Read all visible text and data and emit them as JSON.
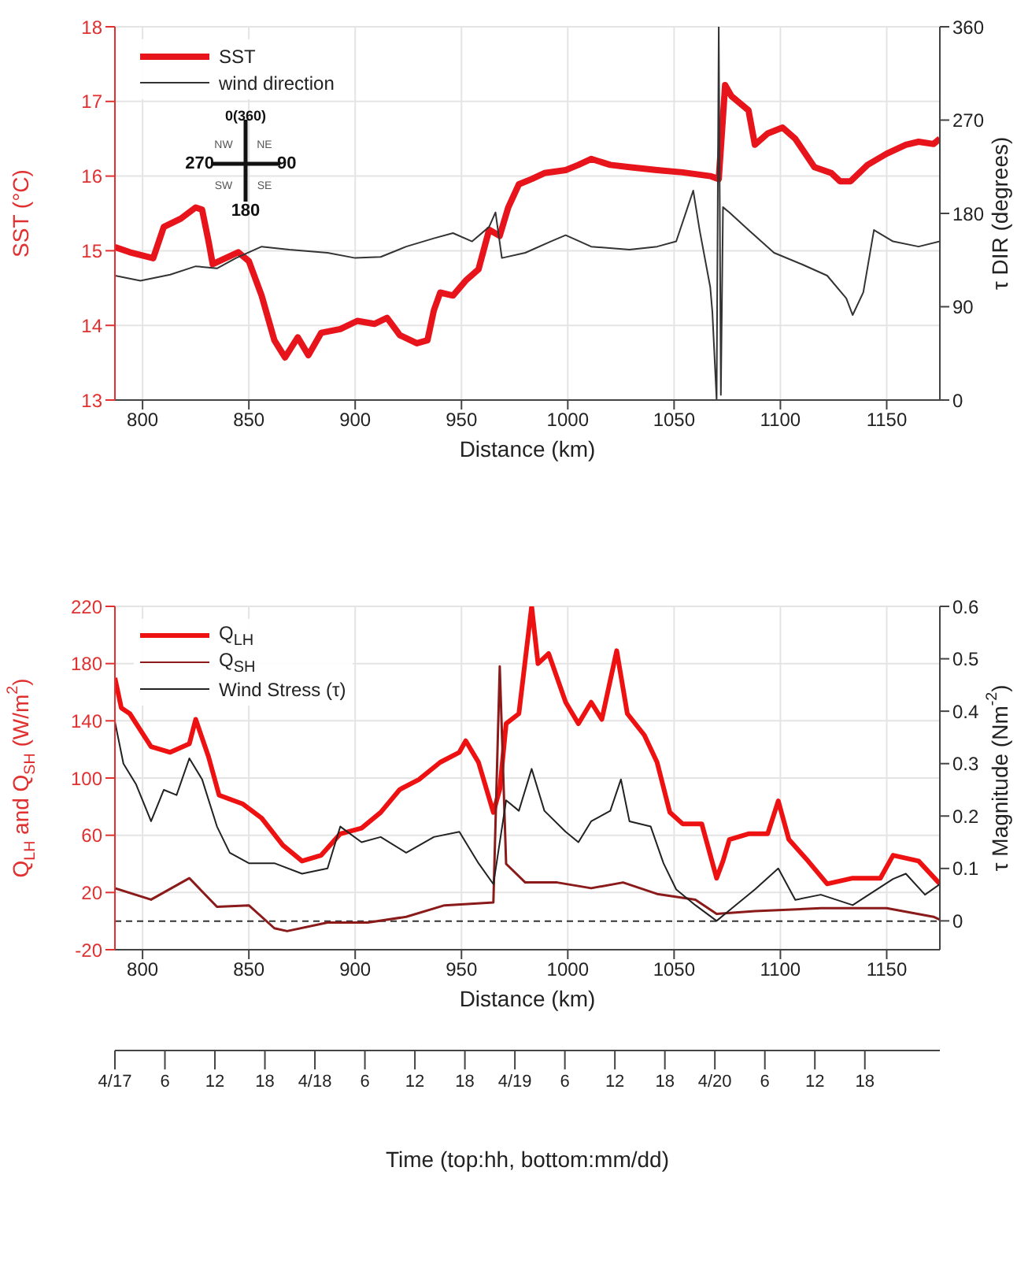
{
  "chart_data": [
    {
      "type": "line",
      "xlabel": "Distance (km)",
      "ylabel": "SST (°C)",
      "y2label": "τ DIR (degrees)",
      "xlim": [
        787,
        1175
      ],
      "xticks": [
        800,
        850,
        900,
        950,
        1000,
        1050,
        1100,
        1150
      ],
      "ylim": [
        13,
        18
      ],
      "yticks": [
        13,
        14,
        15,
        16,
        17,
        18
      ],
      "y2lim": [
        0,
        360
      ],
      "y2ticks": [
        0,
        90,
        180,
        270,
        360
      ],
      "grid": true,
      "legend": "top left",
      "annotations": [
        "0(360)",
        "90",
        "180",
        "270",
        "NE",
        "SE",
        "SW",
        "NW"
      ],
      "series": [
        {
          "name": "SST",
          "color": "#e8141b",
          "x": [
            787,
            794,
            805,
            810,
            818,
            825,
            828,
            831,
            833,
            839,
            845,
            850,
            856,
            862,
            867,
            873,
            878,
            884,
            893,
            901,
            909,
            915,
            921,
            929,
            934,
            937,
            940,
            946,
            952,
            958,
            963,
            968,
            972,
            977,
            983,
            989,
            999,
            1005,
            1011,
            1020,
            1029,
            1042,
            1054,
            1067,
            1071,
            1074,
            1077,
            1085,
            1088,
            1094,
            1101,
            1107,
            1116,
            1124,
            1128,
            1133,
            1141,
            1150,
            1159,
            1165,
            1172,
            1175
          ],
          "values": [
            15.05,
            14.98,
            14.9,
            15.32,
            15.43,
            15.58,
            15.55,
            15.13,
            14.82,
            14.9,
            14.98,
            14.86,
            14.4,
            13.8,
            13.57,
            13.84,
            13.6,
            13.9,
            13.95,
            14.06,
            14.02,
            14.1,
            13.87,
            13.76,
            13.8,
            14.2,
            14.44,
            14.4,
            14.6,
            14.75,
            15.28,
            15.2,
            15.58,
            15.89,
            15.96,
            16.04,
            16.08,
            16.15,
            16.23,
            16.15,
            16.12,
            16.08,
            16.05,
            16.0,
            15.96,
            17.22,
            17.07,
            16.88,
            16.42,
            16.57,
            16.65,
            16.5,
            16.12,
            16.04,
            15.93,
            15.93,
            16.15,
            16.3,
            16.42,
            16.46,
            16.43,
            16.5
          ]
        },
        {
          "name": "wind direction",
          "color": "#333333",
          "axis": "y2",
          "x": [
            787,
            799,
            813,
            825,
            835,
            844,
            856,
            869,
            887,
            900,
            912,
            924,
            937,
            946,
            955,
            963,
            966,
            969,
            980,
            992,
            999,
            1011,
            1029,
            1042,
            1051,
            1059,
            1062,
            1067,
            1068,
            1070,
            1071,
            1072,
            1073,
            1076,
            1085,
            1097,
            1110,
            1122,
            1131,
            1134,
            1139,
            1144,
            1153,
            1165,
            1175
          ],
          "values": [
            120,
            115,
            121,
            129,
            127,
            137,
            148,
            145,
            142,
            137,
            138,
            148,
            156,
            161,
            153,
            167,
            181,
            137,
            142,
            153,
            159,
            148,
            145,
            148,
            153,
            202,
            164,
            109,
            85,
            0,
            360,
            5,
            186,
            181,
            164,
            142,
            131,
            120,
            98,
            82,
            104,
            164,
            153,
            148,
            153
          ]
        }
      ]
    },
    {
      "type": "line",
      "xlabel": "Distance (km)",
      "ylabel": "Q$_{LH}$ and Q$_{SH}$ (W/m$^{2}$)",
      "y2label": "τ Magnitude (Nm$^{-2}$)",
      "xlim": [
        787,
        1175
      ],
      "xticks": [
        800,
        850,
        900,
        950,
        1000,
        1050,
        1100,
        1150
      ],
      "ylim": [
        -20,
        220
      ],
      "yticks": [
        -20,
        20,
        60,
        100,
        140,
        180,
        220
      ],
      "y2lim": [
        -0.055,
        0.6
      ],
      "y2ticks": [
        0,
        0.1,
        0.2,
        0.3,
        0.4,
        0.5,
        0.6
      ],
      "grid": true,
      "legend": "top left",
      "ref_lines": [
        {
          "axis": "y",
          "value": 0,
          "color": "#333333",
          "line_style": "dashed"
        }
      ],
      "x2label": "Time (top:hh, bottom:mm/dd)",
      "x2lim": [
        "--04-17T00:00",
        "--04-21T03:00"
      ],
      "x2ticks": [
        {
          "value": "--04-17T00:00",
          "label": "4/17"
        },
        {
          "value": "--04-17T06:00",
          "label": "6"
        },
        {
          "value": "--04-17T12:00",
          "label": "12"
        },
        {
          "value": "--04-17T18:00",
          "label": "18"
        },
        {
          "value": "--04-18T00:00",
          "label": "4/18"
        },
        {
          "value": "--04-18T06:00",
          "label": "6"
        },
        {
          "value": "--04-18T12:00",
          "label": "12"
        },
        {
          "value": "--04-18T18:00",
          "label": "18"
        },
        {
          "value": "--04-19T00:00",
          "label": "4/19"
        },
        {
          "value": "--04-19T06:00",
          "label": "6"
        },
        {
          "value": "--04-19T12:00",
          "label": "12"
        },
        {
          "value": "--04-19T18:00",
          "label": "18"
        },
        {
          "value": "--04-20T00:00",
          "label": "4/20"
        },
        {
          "value": "--04-20T06:00",
          "label": "6"
        },
        {
          "value": "--04-20T12:00",
          "label": "12"
        },
        {
          "value": "--04-20T18:00",
          "label": "18"
        }
      ],
      "series": [
        {
          "name": "Q$_{LH}$",
          "color": "#ee1111",
          "x": [
            787,
            790,
            794,
            804,
            813,
            822,
            825,
            831,
            836,
            847,
            856,
            866,
            875,
            884,
            893,
            903,
            912,
            921,
            930,
            940,
            949,
            952,
            958,
            965,
            968,
            971,
            977,
            983,
            986,
            991,
            999,
            1005,
            1011,
            1016,
            1023,
            1028,
            1036,
            1042,
            1048,
            1054,
            1063,
            1070,
            1073,
            1076,
            1085,
            1094,
            1099,
            1104,
            1113,
            1122,
            1134,
            1147,
            1153,
            1165,
            1175
          ],
          "values": [
            170,
            149,
            145,
            122,
            118,
            124,
            141,
            115,
            88,
            82,
            72,
            53,
            42,
            46,
            61,
            65,
            76,
            92,
            99,
            111,
            118,
            126,
            111,
            76,
            92,
            138,
            145,
            220,
            180,
            187,
            153,
            138,
            153,
            141,
            189,
            145,
            130,
            111,
            76,
            68,
            68,
            30,
            42,
            57,
            61,
            61,
            84,
            57,
            42,
            26,
            30,
            30,
            46,
            42,
            26
          ]
        },
        {
          "name": "Q$_{SH}$",
          "color": "#8b1a1a",
          "x": [
            787,
            804,
            822,
            835,
            850,
            862,
            868,
            887,
            906,
            924,
            942,
            965,
            968,
            971,
            980,
            995,
            1011,
            1026,
            1042,
            1060,
            1070,
            1088,
            1119,
            1150,
            1172,
            1175
          ],
          "values": [
            23,
            15,
            30,
            10,
            11,
            -5,
            -7,
            -1,
            -1,
            3,
            11,
            13,
            178,
            40,
            27,
            27,
            23,
            27,
            19,
            15,
            5,
            7,
            9,
            9,
            3,
            1
          ]
        },
        {
          "name": "Wind Stress (τ)",
          "color": "#222222",
          "axis": "y2",
          "x": [
            787,
            791,
            797,
            804,
            810,
            816,
            822,
            828,
            835,
            841,
            850,
            862,
            875,
            887,
            893,
            903,
            912,
            924,
            937,
            949,
            958,
            965,
            971,
            977,
            983,
            989,
            999,
            1005,
            1011,
            1020,
            1025,
            1029,
            1039,
            1045,
            1051,
            1060,
            1070,
            1076,
            1088,
            1099,
            1107,
            1119,
            1134,
            1153,
            1159,
            1168,
            1175
          ],
          "values": [
            0.38,
            0.3,
            0.26,
            0.19,
            0.25,
            0.24,
            0.31,
            0.27,
            0.18,
            0.13,
            0.11,
            0.11,
            0.09,
            0.1,
            0.18,
            0.15,
            0.16,
            0.13,
            0.16,
            0.17,
            0.11,
            0.07,
            0.23,
            0.21,
            0.29,
            0.21,
            0.17,
            0.15,
            0.19,
            0.21,
            0.27,
            0.19,
            0.18,
            0.11,
            0.06,
            0.03,
            0.0,
            0.02,
            0.06,
            0.1,
            0.04,
            0.05,
            0.03,
            0.08,
            0.09,
            0.05,
            0.07
          ]
        }
      ]
    }
  ]
}
